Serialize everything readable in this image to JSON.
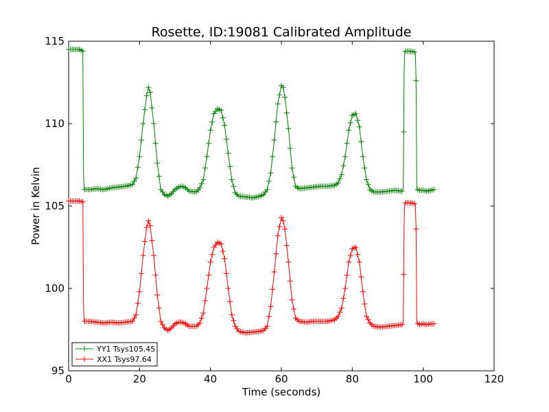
{
  "chart_data": {
    "type": "line",
    "title": "Rosette, ID:19081 Calibrated Amplitude",
    "xlabel": "Time (seconds)",
    "ylabel": "Power in Kelvin",
    "xlim": [
      0,
      120
    ],
    "ylim": [
      95,
      115
    ],
    "xticks": [
      "0",
      "20",
      "40",
      "60",
      "80",
      "100",
      "120"
    ],
    "yticks": [
      "95",
      "100",
      "105",
      "110",
      "115"
    ],
    "grid": false,
    "legend_position": "lower-left",
    "colors": {
      "YY1": "#008000",
      "XX1": "#ff0000"
    },
    "series": [
      {
        "name": "YY1 Tsys105.45",
        "color": "#008000",
        "points": [
          [
            0,
            114.5
          ],
          [
            1,
            114.5
          ],
          [
            2,
            114.5
          ],
          [
            3,
            114.5
          ],
          [
            4,
            114.4
          ],
          [
            4.2,
            107.0
          ],
          [
            4.4,
            106.0
          ],
          [
            6,
            106.0
          ],
          [
            8,
            106.05
          ],
          [
            10,
            106.0
          ],
          [
            12,
            106.1
          ],
          [
            14,
            106.15
          ],
          [
            16,
            106.2
          ],
          [
            18,
            106.3
          ],
          [
            19,
            106.7
          ],
          [
            20,
            108.0
          ],
          [
            21,
            110.0
          ],
          [
            22,
            111.7
          ],
          [
            22.5,
            112.2
          ],
          [
            23,
            111.9
          ],
          [
            24,
            110.0
          ],
          [
            25,
            107.6
          ],
          [
            26,
            106.0
          ],
          [
            27,
            105.7
          ],
          [
            28,
            105.6
          ],
          [
            29,
            105.75
          ],
          [
            30,
            106.0
          ],
          [
            31,
            106.15
          ],
          [
            32,
            106.2
          ],
          [
            33,
            106.1
          ],
          [
            34,
            105.9
          ],
          [
            36,
            105.85
          ],
          [
            37,
            106.1
          ],
          [
            38,
            106.6
          ],
          [
            39,
            108.0
          ],
          [
            40,
            109.6
          ],
          [
            41,
            110.6
          ],
          [
            42,
            110.9
          ],
          [
            43,
            110.8
          ],
          [
            44,
            109.9
          ],
          [
            45,
            108.2
          ],
          [
            46,
            106.6
          ],
          [
            47,
            105.8
          ],
          [
            48,
            105.6
          ],
          [
            50,
            105.55
          ],
          [
            52,
            105.5
          ],
          [
            54,
            105.6
          ],
          [
            55,
            105.7
          ],
          [
            56,
            106.0
          ],
          [
            57,
            107.0
          ],
          [
            58,
            109.0
          ],
          [
            59,
            111.2
          ],
          [
            60,
            112.3
          ],
          [
            60.5,
            112.2
          ],
          [
            61,
            111.6
          ],
          [
            62,
            109.7
          ],
          [
            63,
            107.3
          ],
          [
            64,
            106.2
          ],
          [
            65,
            106.05
          ],
          [
            67,
            106.1
          ],
          [
            69,
            106.15
          ],
          [
            71,
            106.2
          ],
          [
            73,
            106.2
          ],
          [
            75,
            106.25
          ],
          [
            76,
            106.4
          ],
          [
            77,
            106.9
          ],
          [
            78,
            108.0
          ],
          [
            79,
            109.6
          ],
          [
            80,
            110.5
          ],
          [
            81,
            110.6
          ],
          [
            82,
            109.8
          ],
          [
            83,
            108.0
          ],
          [
            84,
            106.6
          ],
          [
            85,
            106.0
          ],
          [
            86,
            105.85
          ],
          [
            88,
            105.85
          ],
          [
            90,
            105.9
          ],
          [
            92,
            105.95
          ],
          [
            94,
            105.9
          ],
          [
            94.4,
            106.0
          ],
          [
            94.6,
            113.0
          ],
          [
            94.8,
            114.4
          ],
          [
            96,
            114.4
          ],
          [
            97.5,
            114.35
          ],
          [
            97.8,
            114.3
          ],
          [
            98.0,
            112.6
          ],
          [
            98.2,
            106.0
          ],
          [
            99,
            105.95
          ],
          [
            100,
            105.95
          ],
          [
            101,
            105.9
          ],
          [
            102,
            105.95
          ],
          [
            103,
            106.0
          ]
        ]
      },
      {
        "name": "XX1 Tsys97.64",
        "color": "#ff0000",
        "points": [
          [
            0,
            105.3
          ],
          [
            1,
            105.3
          ],
          [
            2,
            105.3
          ],
          [
            3,
            105.3
          ],
          [
            4,
            105.25
          ],
          [
            4.2,
            99.0
          ],
          [
            4.4,
            98.0
          ],
          [
            6,
            98.0
          ],
          [
            8,
            97.95
          ],
          [
            10,
            97.9
          ],
          [
            12,
            97.95
          ],
          [
            14,
            97.9
          ],
          [
            16,
            97.95
          ],
          [
            18,
            98.0
          ],
          [
            19,
            98.4
          ],
          [
            20,
            99.8
          ],
          [
            21,
            102.0
          ],
          [
            22,
            103.7
          ],
          [
            22.5,
            104.1
          ],
          [
            23,
            103.8
          ],
          [
            24,
            102.0
          ],
          [
            25,
            99.6
          ],
          [
            26,
            98.0
          ],
          [
            27,
            97.6
          ],
          [
            28,
            97.45
          ],
          [
            29,
            97.6
          ],
          [
            30,
            97.85
          ],
          [
            31,
            97.95
          ],
          [
            32,
            97.95
          ],
          [
            33,
            97.85
          ],
          [
            34,
            97.7
          ],
          [
            36,
            97.7
          ],
          [
            37,
            97.9
          ],
          [
            38,
            98.5
          ],
          [
            39,
            100.0
          ],
          [
            40,
            101.6
          ],
          [
            41,
            102.5
          ],
          [
            42,
            102.8
          ],
          [
            43,
            102.7
          ],
          [
            44,
            101.8
          ],
          [
            45,
            100.0
          ],
          [
            46,
            98.4
          ],
          [
            47,
            97.7
          ],
          [
            48,
            97.4
          ],
          [
            50,
            97.3
          ],
          [
            52,
            97.35
          ],
          [
            54,
            97.4
          ],
          [
            55,
            97.45
          ],
          [
            56,
            97.7
          ],
          [
            57,
            98.9
          ],
          [
            58,
            101.0
          ],
          [
            59,
            103.2
          ],
          [
            60,
            104.3
          ],
          [
            60.5,
            104.1
          ],
          [
            61,
            103.6
          ],
          [
            62,
            101.6
          ],
          [
            63,
            99.3
          ],
          [
            64,
            98.2
          ],
          [
            65,
            98.0
          ],
          [
            67,
            97.95
          ],
          [
            69,
            98.0
          ],
          [
            71,
            98.0
          ],
          [
            73,
            98.0
          ],
          [
            75,
            98.1
          ],
          [
            76,
            98.3
          ],
          [
            77,
            98.8
          ],
          [
            78,
            100.0
          ],
          [
            79,
            101.6
          ],
          [
            80,
            102.4
          ],
          [
            81,
            102.5
          ],
          [
            82,
            101.6
          ],
          [
            83,
            99.8
          ],
          [
            84,
            98.3
          ],
          [
            85,
            97.9
          ],
          [
            86,
            97.7
          ],
          [
            88,
            97.65
          ],
          [
            90,
            97.7
          ],
          [
            92,
            97.75
          ],
          [
            94,
            97.8
          ],
          [
            94.4,
            97.9
          ],
          [
            94.6,
            103.8
          ],
          [
            94.8,
            105.2
          ],
          [
            96,
            105.2
          ],
          [
            97.5,
            105.15
          ],
          [
            97.8,
            105.1
          ],
          [
            98.0,
            103.6
          ],
          [
            98.2,
            97.9
          ],
          [
            99,
            97.8
          ],
          [
            100,
            97.85
          ],
          [
            101,
            97.8
          ],
          [
            102,
            97.85
          ],
          [
            103,
            97.85
          ]
        ]
      }
    ]
  }
}
